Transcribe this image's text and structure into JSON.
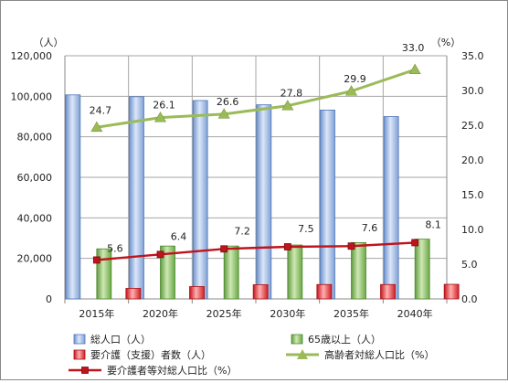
{
  "chart_data": {
    "type": "bar",
    "title": "",
    "categories": [
      "2015年",
      "2020年",
      "2025年",
      "2030年",
      "2035年",
      "2040年"
    ],
    "y_left": {
      "unit": "（人）",
      "ylim": [
        0,
        120000
      ],
      "ticks": [
        "0",
        "20,000",
        "40,000",
        "60,000",
        "80,000",
        "100,000",
        "120,000"
      ]
    },
    "y_right": {
      "unit": "（%）",
      "ylim": [
        0,
        35.0
      ],
      "ticks": [
        "0.0",
        "5.0",
        "10.0",
        "15.0",
        "20.0",
        "25.0",
        "30.0",
        "35.0"
      ]
    },
    "grid": true,
    "legend_position": "bottom",
    "series": [
      {
        "name": "総人口（人）",
        "type": "bar",
        "axis": "left",
        "color": "#a9c4ea",
        "values": [
          100700,
          99800,
          97900,
          95800,
          93200,
          90000
        ]
      },
      {
        "name": "65歳以上（人）",
        "type": "bar",
        "axis": "left",
        "color": "#8dc16a",
        "values": [
          24700,
          26100,
          26100,
          26600,
          27800,
          29500
        ]
      },
      {
        "name": "要介護（支援）者数（人）",
        "type": "bar",
        "axis": "left",
        "color": "#e8333a",
        "values": [
          5200,
          6100,
          7000,
          7100,
          7100,
          7200
        ]
      },
      {
        "name": "高齢者対総人口比（%）",
        "type": "line",
        "axis": "right",
        "color": "#9bbb59",
        "marker": "triangle",
        "values": [
          24.7,
          26.1,
          26.6,
          27.8,
          29.9,
          33.0
        ],
        "labels": [
          "24.7",
          "26.1",
          "26.6",
          "27.8",
          "29.9",
          "33.0"
        ]
      },
      {
        "name": "要介護者等対総人口比（%）",
        "type": "line",
        "axis": "right",
        "color": "#c0141c",
        "marker": "square",
        "values": [
          5.6,
          6.4,
          7.2,
          7.5,
          7.6,
          8.1
        ],
        "labels": [
          "5.6",
          "6.4",
          "7.2",
          "7.5",
          "7.6",
          "8.1"
        ]
      }
    ]
  }
}
